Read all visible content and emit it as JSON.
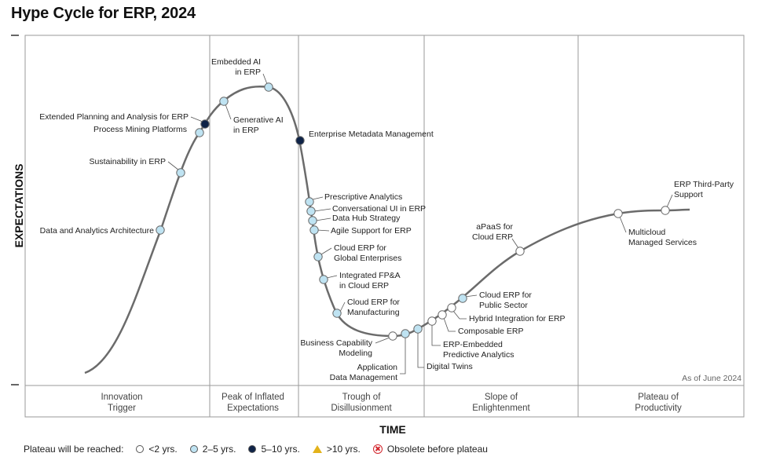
{
  "title": "Hype Cycle for ERP, 2024",
  "colors": {
    "lt2": "#ffffff",
    "y2to5": "#bfe3f2",
    "y5to10": "#0f2347",
    "gt10": "#e3b21a",
    "obsolete": "#d2232a",
    "curve": "#6b6b6b",
    "divider": "#9a9a9a"
  },
  "chart_data": {
    "type": "hype-cycle",
    "title": "Hype Cycle for ERP, 2024",
    "xlabel": "TIME",
    "ylabel": "EXPECTATIONS",
    "as_of": "As of June 2024",
    "phases": [
      "Innovation\nTrigger",
      "Peak of Inflated\nExpectations",
      "Trough of\nDisillusionment",
      "Slope of\nEnlightenment",
      "Plateau of\nProductivity"
    ],
    "legend_label": "Plateau will be reached:",
    "legend": [
      {
        "label": "<2 yrs.",
        "key": "lt2"
      },
      {
        "label": "2–5 yrs.",
        "key": "y2to5"
      },
      {
        "label": "5–10 yrs.",
        "key": "y5to10"
      },
      {
        "label": ">10 yrs.",
        "key": "gt10"
      },
      {
        "label": "Obsolete before plateau",
        "key": "obsolete"
      }
    ],
    "technologies": [
      {
        "name": "Data and Analytics Architecture",
        "phase": "Innovation Trigger",
        "plateau": "y2to5"
      },
      {
        "name": "Sustainability in ERP",
        "phase": "Innovation Trigger",
        "plateau": "y2to5"
      },
      {
        "name": "Process Mining Platforms",
        "phase": "Innovation Trigger",
        "plateau": "y2to5"
      },
      {
        "name": "Extended Planning and Analysis for ERP",
        "phase": "Innovation Trigger",
        "plateau": "y5to10"
      },
      {
        "name": "Generative AI\nin ERP",
        "phase": "Peak of Inflated Expectations",
        "plateau": "y2to5"
      },
      {
        "name": "Embedded AI\nin ERP",
        "phase": "Peak of Inflated Expectations",
        "plateau": "y2to5"
      },
      {
        "name": "Enterprise Metadata Management",
        "phase": "Trough of Disillusionment",
        "plateau": "y5to10"
      },
      {
        "name": "Prescriptive Analytics",
        "phase": "Trough of Disillusionment",
        "plateau": "y2to5"
      },
      {
        "name": "Conversational UI in ERP",
        "phase": "Trough of Disillusionment",
        "plateau": "y2to5"
      },
      {
        "name": "Data Hub Strategy",
        "phase": "Trough of Disillusionment",
        "plateau": "y2to5"
      },
      {
        "name": "Agile Support for ERP",
        "phase": "Trough of Disillusionment",
        "plateau": "y2to5"
      },
      {
        "name": "Cloud ERP for\nGlobal Enterprises",
        "phase": "Trough of Disillusionment",
        "plateau": "y2to5"
      },
      {
        "name": "Integrated FP&A\nin Cloud ERP",
        "phase": "Trough of Disillusionment",
        "plateau": "y2to5"
      },
      {
        "name": "Cloud ERP for\nManufacturing",
        "phase": "Trough of Disillusionment",
        "plateau": "y2to5"
      },
      {
        "name": "Business Capability\nModeling",
        "phase": "Trough of Disillusionment",
        "plateau": "lt2"
      },
      {
        "name": "Application\nData Management",
        "phase": "Trough of Disillusionment",
        "plateau": "y2to5"
      },
      {
        "name": "Digital Twins",
        "phase": "Trough of Disillusionment",
        "plateau": "y2to5"
      },
      {
        "name": "ERP-Embedded\nPredictive Analytics",
        "phase": "Slope of Enlightenment",
        "plateau": "lt2"
      },
      {
        "name": "Composable ERP",
        "phase": "Slope of Enlightenment",
        "plateau": "lt2"
      },
      {
        "name": "Hybrid Integration for ERP",
        "phase": "Slope of Enlightenment",
        "plateau": "lt2"
      },
      {
        "name": "Cloud ERP for\nPublic Sector",
        "phase": "Slope of Enlightenment",
        "plateau": "y2to5"
      },
      {
        "name": "aPaaS for\nCloud ERP",
        "phase": "Slope of Enlightenment",
        "plateau": "lt2"
      },
      {
        "name": "Multicloud\nManaged Services",
        "phase": "Plateau of Productivity",
        "plateau": "lt2"
      },
      {
        "name": "ERP Third-Party\nSupport",
        "phase": "Plateau of Productivity",
        "plateau": "lt2"
      }
    ]
  }
}
